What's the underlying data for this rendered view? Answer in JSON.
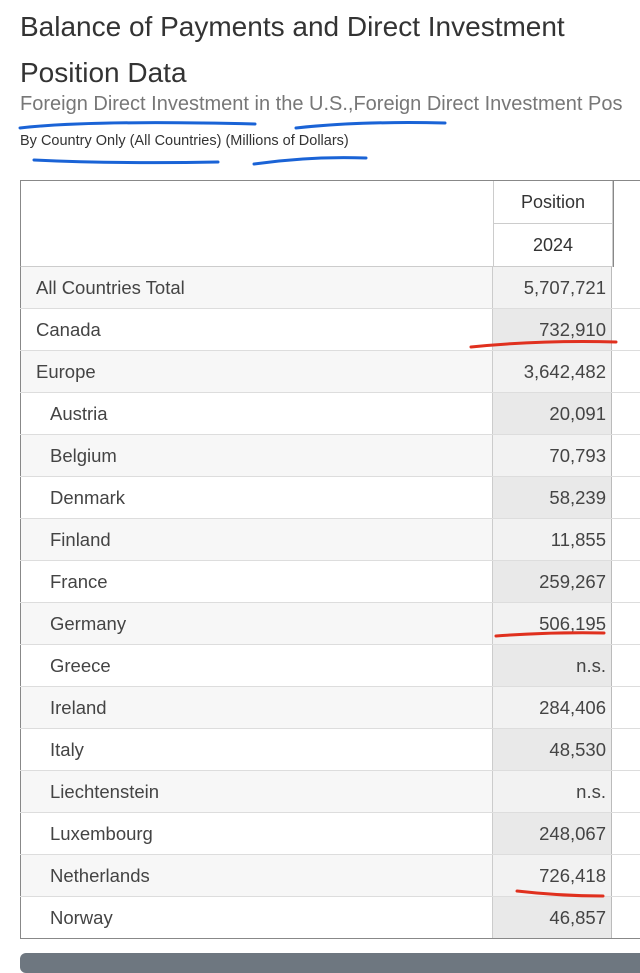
{
  "page": {
    "title": "Balance of Payments and Direct Investment Position Data",
    "subtitle": "Foreign Direct Investment in the U.S.,Foreign Direct Investment Pos",
    "subsubtitle": "By Country Only (All Countries) (Millions of Dollars)"
  },
  "table": {
    "column_header": "Position",
    "year_header": "2024",
    "rows": [
      {
        "name": "All Countries Total",
        "value": "5,707,721",
        "indent": false
      },
      {
        "name": "Canada",
        "value": "732,910",
        "indent": false
      },
      {
        "name": "Europe",
        "value": "3,642,482",
        "indent": false
      },
      {
        "name": "Austria",
        "value": "20,091",
        "indent": true
      },
      {
        "name": "Belgium",
        "value": "70,793",
        "indent": true
      },
      {
        "name": "Denmark",
        "value": "58,239",
        "indent": true
      },
      {
        "name": "Finland",
        "value": "11,855",
        "indent": true
      },
      {
        "name": "France",
        "value": "259,267",
        "indent": true
      },
      {
        "name": "Germany",
        "value": "506,195",
        "indent": true
      },
      {
        "name": "Greece",
        "value": "n.s.",
        "indent": true
      },
      {
        "name": "Ireland",
        "value": "284,406",
        "indent": true
      },
      {
        "name": "Italy",
        "value": "48,530",
        "indent": true
      },
      {
        "name": "Liechtenstein",
        "value": "n.s.",
        "indent": true
      },
      {
        "name": "Luxembourg",
        "value": "248,067",
        "indent": true
      },
      {
        "name": "Netherlands",
        "value": "726,418",
        "indent": true
      },
      {
        "name": "Norway",
        "value": "46,857",
        "indent": true
      }
    ]
  },
  "annotations": {
    "blue": "#1a63d6",
    "red": "#e0301e"
  }
}
